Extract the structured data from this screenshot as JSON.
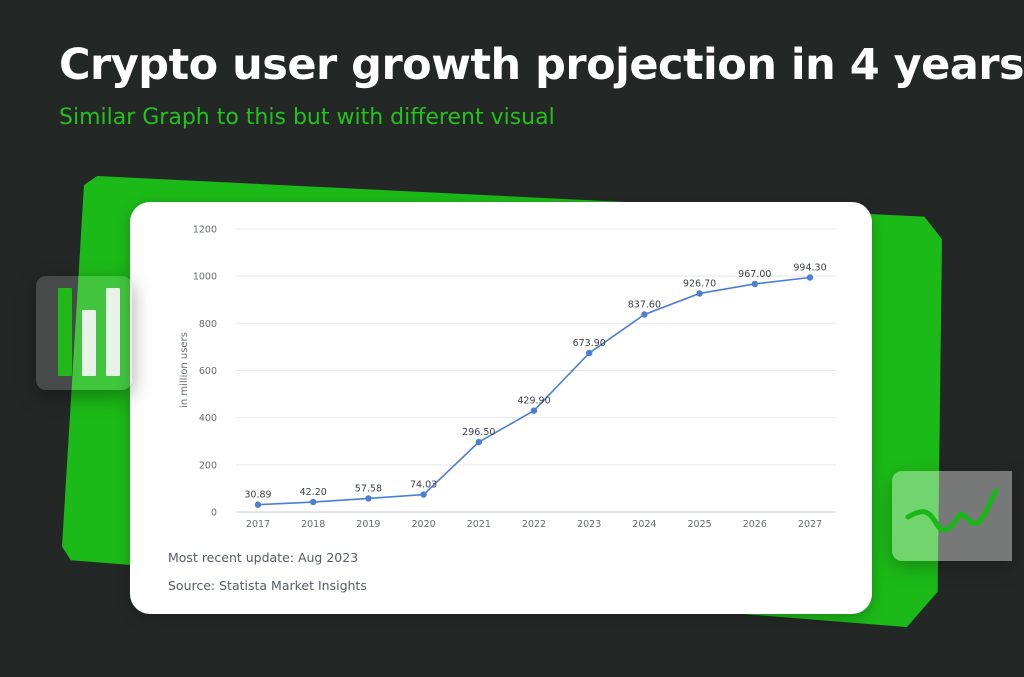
{
  "header": {
    "title": "Crypto user growth projection in 4 years",
    "subtitle": "Similar Graph to this but with different visual"
  },
  "colors": {
    "background": "#232826",
    "accent_green": "#1cba18",
    "subtitle_green": "#22c21a",
    "line_blue": "#4a7fd4"
  },
  "card": {
    "update": "Most recent update: Aug 2023",
    "source": "Source: Statista Market Insights"
  },
  "icons": {
    "left": "bar-chart-icon",
    "right": "trend-wave-icon"
  },
  "chart_data": {
    "type": "line",
    "x": [
      "2017",
      "2018",
      "2019",
      "2020",
      "2021",
      "2022",
      "2023",
      "2024",
      "2025",
      "2026",
      "2027"
    ],
    "values": [
      30.89,
      42.2,
      57.58,
      74.03,
      296.5,
      429.9,
      673.9,
      837.6,
      926.7,
      967.0,
      994.3
    ],
    "data_labels": [
      "30.89",
      "42.20",
      "57.58",
      "74.03",
      "296.50",
      "429.90",
      "673.90",
      "837.60",
      "926.70",
      "967.00",
      "994.30"
    ],
    "ylabel": "in million users",
    "xlabel": "",
    "ylim": [
      0,
      1200
    ],
    "yticks": [
      0,
      200,
      400,
      600,
      800,
      1000,
      1200
    ],
    "grid": true,
    "legend": "none"
  }
}
